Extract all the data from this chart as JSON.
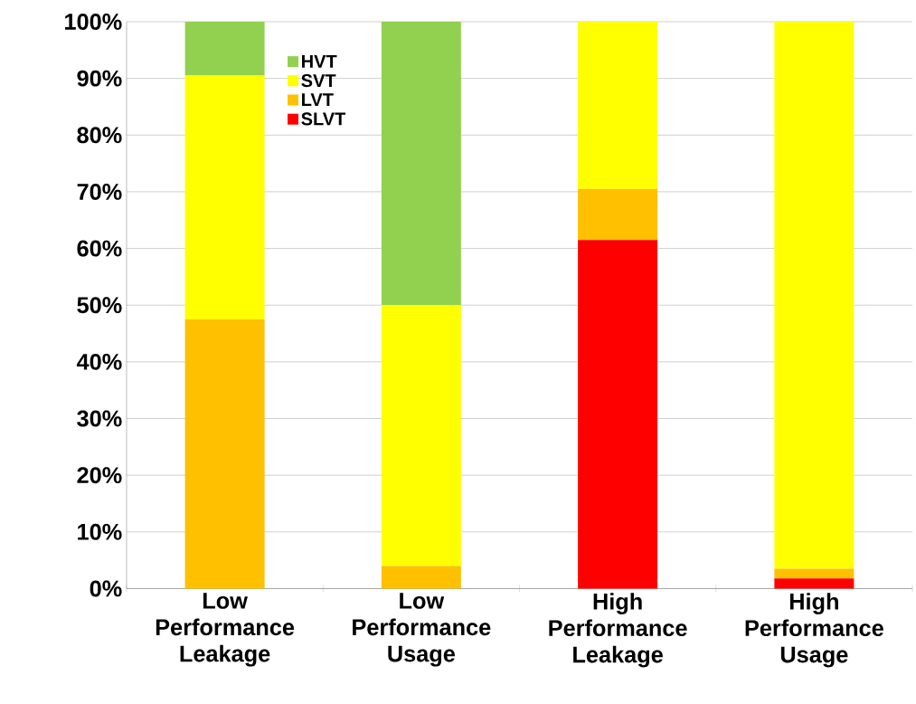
{
  "chart_data": {
    "type": "bar",
    "stacked": true,
    "categories": [
      "Low Performance Leakage",
      "Low Performance Usage",
      "High Performance Leakage",
      "High Performance Usage"
    ],
    "series": [
      {
        "name": "SLVT",
        "color": "#ff0000",
        "values": [
          0,
          0,
          61.5,
          1.8
        ]
      },
      {
        "name": "LVT",
        "color": "#ffc000",
        "values": [
          47.5,
          4,
          9,
          1.7
        ]
      },
      {
        "name": "SVT",
        "color": "#ffff00",
        "values": [
          43,
          46,
          29.5,
          96.5
        ]
      },
      {
        "name": "HVT",
        "color": "#92d050",
        "values": [
          9.5,
          50,
          0,
          0
        ]
      }
    ],
    "ylim": [
      0,
      100
    ],
    "yticks": [
      {
        "value": 0,
        "label": "0%"
      },
      {
        "value": 10,
        "label": "10%"
      },
      {
        "value": 20,
        "label": "20%"
      },
      {
        "value": 30,
        "label": "30%"
      },
      {
        "value": 40,
        "label": "40%"
      },
      {
        "value": 50,
        "label": "50%"
      },
      {
        "value": 60,
        "label": "60%"
      },
      {
        "value": 70,
        "label": "70%"
      },
      {
        "value": 80,
        "label": "80%"
      },
      {
        "value": 90,
        "label": "90%"
      },
      {
        "value": 100,
        "label": "100%"
      }
    ],
    "grid": "y",
    "legend": "top left"
  }
}
